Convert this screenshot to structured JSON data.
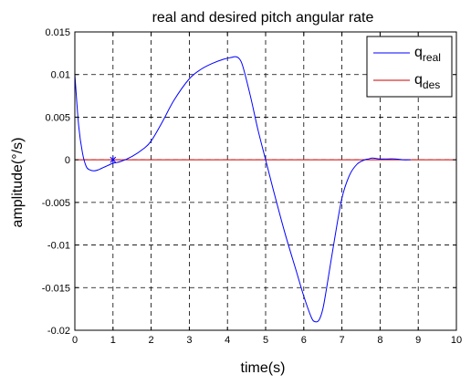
{
  "chart_data": {
    "type": "line",
    "title": "real and desired pitch angular rate",
    "xlabel": "time(s)",
    "ylabel": "amplitude(°/s)",
    "xlim": [
      0,
      10
    ],
    "ylim": [
      -0.02,
      0.015
    ],
    "x_ticks": [
      "0",
      "1",
      "2",
      "3",
      "4",
      "5",
      "6",
      "7",
      "8",
      "9",
      "10"
    ],
    "y_ticks": [
      "0.015",
      "0.01",
      "0.005",
      "0",
      "-0.005",
      "-0.01",
      "-0.015",
      "-0.02"
    ],
    "grid": true,
    "legend_position": "top-right",
    "series": [
      {
        "name_main": "q",
        "name_sub": "real",
        "color": "#0000ff",
        "x": [
          0,
          0.1,
          0.2,
          0.3,
          0.4,
          0.5,
          0.6,
          0.7,
          0.8,
          0.9,
          1.0,
          1.2,
          1.5,
          1.8,
          2.0,
          2.3,
          2.6,
          3.0,
          3.3,
          3.6,
          3.9,
          4.1,
          4.2,
          4.3,
          4.4,
          4.6,
          4.8,
          5.0,
          5.2,
          5.5,
          5.8,
          6.0,
          6.2,
          6.3,
          6.4,
          6.5,
          6.6,
          6.8,
          7.0,
          7.2,
          7.4,
          7.6,
          7.7,
          7.8,
          8.0,
          8.2,
          8.4,
          8.6,
          8.8
        ],
        "y": [
          0.01,
          0.004,
          0.0008,
          -0.0008,
          -0.0012,
          -0.0013,
          -0.0012,
          -0.001,
          -0.0008,
          -0.0006,
          -0.0004,
          -0.0002,
          0.0004,
          0.0013,
          0.0022,
          0.0045,
          0.007,
          0.0095,
          0.0106,
          0.0113,
          0.0118,
          0.012,
          0.0121,
          0.0119,
          0.011,
          0.0075,
          0.0035,
          0,
          -0.0035,
          -0.0085,
          -0.013,
          -0.016,
          -0.0185,
          -0.019,
          -0.0188,
          -0.0175,
          -0.015,
          -0.0095,
          -0.0045,
          -0.0018,
          -0.0005,
          0,
          0.0001,
          0.0002,
          0.0001,
          0.0001,
          0.0001,
          0,
          0
        ]
      },
      {
        "name_main": "q",
        "name_sub": "des",
        "color": "#cc0000",
        "x": [
          0,
          10
        ],
        "y": [
          0,
          0
        ]
      }
    ],
    "marker": {
      "x": 1.0,
      "y": 0,
      "color": "#0000ff"
    }
  }
}
